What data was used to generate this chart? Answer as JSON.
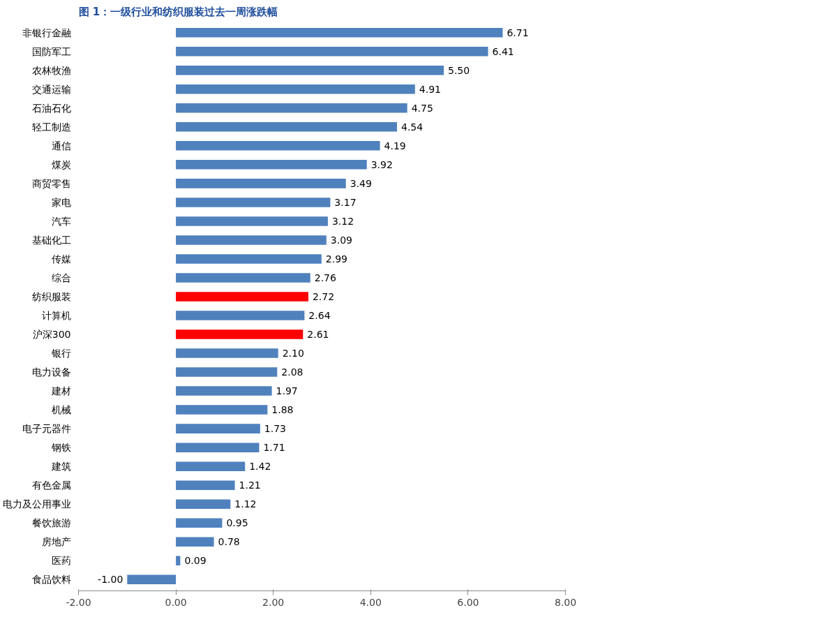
{
  "chart_data": {
    "type": "bar",
    "orientation": "horizontal",
    "title": "图 1：一级行业和纺织服装过去一周涨跌幅",
    "categories": [
      "非银行金融",
      "国防军工",
      "农林牧渔",
      "交通运输",
      "石油石化",
      "轻工制造",
      "通信",
      "煤炭",
      "商贸零售",
      "家电",
      "汽车",
      "基础化工",
      "传媒",
      "综合",
      "纺织服装",
      "计算机",
      "沪深300",
      "银行",
      "电力设备",
      "建材",
      "机械",
      "电子元器件",
      "钢铁",
      "建筑",
      "有色金属",
      "电力及公用事业",
      "餐饮旅游",
      "房地产",
      "医药",
      "食品饮料"
    ],
    "values": [
      6.71,
      6.41,
      5.5,
      4.91,
      4.75,
      4.54,
      4.19,
      3.92,
      3.49,
      3.17,
      3.12,
      3.09,
      2.99,
      2.76,
      2.72,
      2.64,
      2.61,
      2.1,
      2.08,
      1.97,
      1.88,
      1.73,
      1.71,
      1.42,
      1.21,
      1.12,
      0.95,
      0.78,
      0.09,
      -1.0
    ],
    "value_labels": [
      "6.71",
      "6.41",
      "5.50",
      "4.91",
      "4.75",
      "4.54",
      "4.19",
      "3.92",
      "3.49",
      "3.17",
      "3.12",
      "3.09",
      "2.99",
      "2.76",
      "2.72",
      "2.64",
      "2.61",
      "2.10",
      "2.08",
      "1.97",
      "1.88",
      "1.73",
      "1.71",
      "1.42",
      "1.21",
      "1.12",
      "0.95",
      "0.78",
      "0.09",
      "-1.00"
    ],
    "colors": [
      "#4f81bd",
      "#4f81bd",
      "#4f81bd",
      "#4f81bd",
      "#4f81bd",
      "#4f81bd",
      "#4f81bd",
      "#4f81bd",
      "#4f81bd",
      "#4f81bd",
      "#4f81bd",
      "#4f81bd",
      "#4f81bd",
      "#4f81bd",
      "#ff0000",
      "#4f81bd",
      "#ff0000",
      "#4f81bd",
      "#4f81bd",
      "#4f81bd",
      "#4f81bd",
      "#4f81bd",
      "#4f81bd",
      "#4f81bd",
      "#4f81bd",
      "#4f81bd",
      "#4f81bd",
      "#4f81bd",
      "#4f81bd",
      "#4f81bd"
    ],
    "xlim": [
      -2,
      8
    ],
    "xticks": [
      {
        "value": -2,
        "label": "-2.00"
      },
      {
        "value": 0,
        "label": "0.00"
      },
      {
        "value": 2,
        "label": "2.00"
      },
      {
        "value": 4,
        "label": "4.00"
      },
      {
        "value": 6,
        "label": "6.00"
      },
      {
        "value": 8,
        "label": "8.00"
      }
    ],
    "grid": false
  }
}
